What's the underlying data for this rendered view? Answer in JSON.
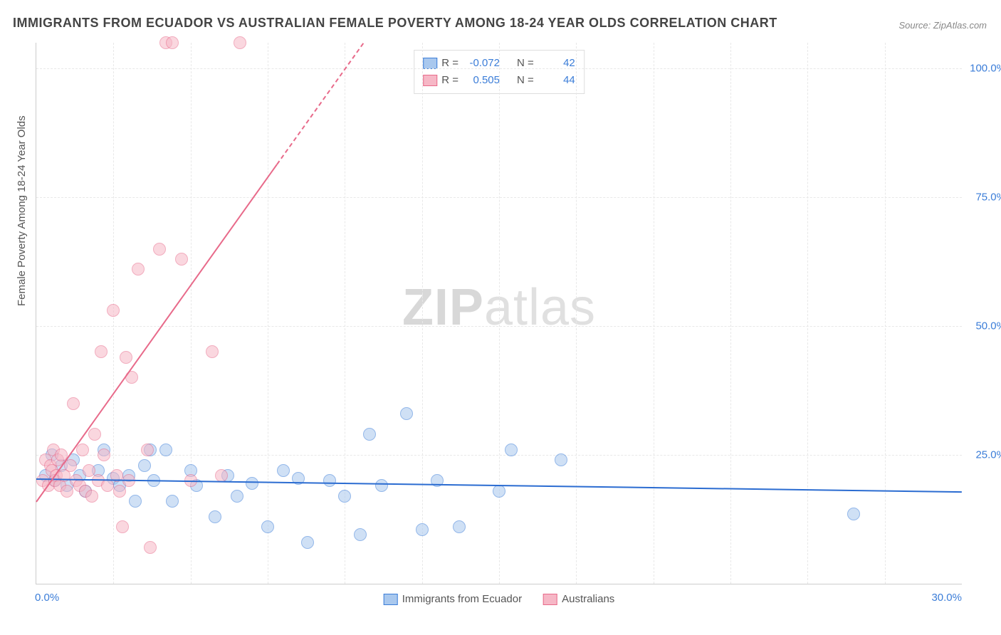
{
  "title": "IMMIGRANTS FROM ECUADOR VS AUSTRALIAN FEMALE POVERTY AMONG 18-24 YEAR OLDS CORRELATION CHART",
  "source": "Source: ZipAtlas.com",
  "watermark_bold": "ZIP",
  "watermark_light": "atlas",
  "chart": {
    "type": "scatter",
    "xlim": [
      0,
      30
    ],
    "ylim": [
      0,
      105
    ],
    "xtick_step": 2.5,
    "ytick_step": 25,
    "xtick_labels": [
      "0.0%",
      "30.0%"
    ],
    "ytick_labels": [
      "25.0%",
      "50.0%",
      "75.0%",
      "100.0%"
    ],
    "ytick_values": [
      25,
      50,
      75,
      100
    ],
    "xtick_label_values": [
      0,
      30
    ],
    "ylabel": "Female Poverty Among 18-24 Year Olds",
    "background_color": "#ffffff",
    "grid_color": "#e8e8e8",
    "point_radius": 8,
    "series": [
      {
        "id": "ecuador",
        "label": "Immigrants from Ecuador",
        "fill": "#a9c8ee",
        "stroke": "#3b7dd8",
        "fill_opacity": 0.55,
        "R": "-0.072",
        "N": "42",
        "trend": {
          "x1": 0,
          "y1": 20.5,
          "x2": 30,
          "y2": 18.0,
          "color": "#2b6cd1",
          "dashed_after_x": null
        },
        "points": [
          [
            0.3,
            21
          ],
          [
            0.5,
            25
          ],
          [
            0.6,
            20
          ],
          [
            0.8,
            23
          ],
          [
            1.0,
            19
          ],
          [
            1.2,
            24
          ],
          [
            1.4,
            21
          ],
          [
            1.6,
            18
          ],
          [
            2.0,
            22
          ],
          [
            2.2,
            26
          ],
          [
            2.5,
            20.5
          ],
          [
            2.7,
            19
          ],
          [
            3.0,
            21
          ],
          [
            3.2,
            16
          ],
          [
            3.5,
            23
          ],
          [
            3.8,
            20
          ],
          [
            4.2,
            26
          ],
          [
            4.4,
            16
          ],
          [
            5.0,
            22
          ],
          [
            5.2,
            19
          ],
          [
            5.8,
            13
          ],
          [
            6.2,
            21
          ],
          [
            6.5,
            17
          ],
          [
            7.0,
            19.5
          ],
          [
            7.5,
            11
          ],
          [
            8.0,
            22
          ],
          [
            8.5,
            20.5
          ],
          [
            8.8,
            8
          ],
          [
            9.5,
            20
          ],
          [
            10.0,
            17
          ],
          [
            10.5,
            9.5
          ],
          [
            10.8,
            29
          ],
          [
            11.2,
            19
          ],
          [
            12.0,
            33
          ],
          [
            12.5,
            10.5
          ],
          [
            13.0,
            20
          ],
          [
            13.7,
            11
          ],
          [
            15.0,
            18
          ],
          [
            15.4,
            26
          ],
          [
            17.0,
            24
          ],
          [
            26.5,
            13.5
          ],
          [
            3.7,
            26
          ]
        ]
      },
      {
        "id": "australians",
        "label": "Australians",
        "fill": "#f6b7c6",
        "stroke": "#e86a8a",
        "fill_opacity": 0.55,
        "R": "0.505",
        "N": "44",
        "trend": {
          "x1": 0,
          "y1": 16,
          "x2": 10.6,
          "y2": 105,
          "color": "#e86a8a",
          "dashed_after_x": 7.8
        },
        "points": [
          [
            0.2,
            20
          ],
          [
            0.3,
            24
          ],
          [
            0.4,
            19
          ],
          [
            0.45,
            23
          ],
          [
            0.5,
            22
          ],
          [
            0.55,
            26
          ],
          [
            0.6,
            20
          ],
          [
            0.65,
            21
          ],
          [
            0.7,
            24
          ],
          [
            0.75,
            19
          ],
          [
            0.8,
            25
          ],
          [
            0.9,
            21
          ],
          [
            1.0,
            18
          ],
          [
            1.1,
            23
          ],
          [
            1.2,
            35
          ],
          [
            1.3,
            20
          ],
          [
            1.4,
            19
          ],
          [
            1.5,
            26
          ],
          [
            1.6,
            18
          ],
          [
            1.7,
            22
          ],
          [
            1.8,
            17
          ],
          [
            1.9,
            29
          ],
          [
            2.0,
            20
          ],
          [
            2.1,
            45
          ],
          [
            2.2,
            25
          ],
          [
            2.3,
            19
          ],
          [
            2.5,
            53
          ],
          [
            2.6,
            21
          ],
          [
            2.7,
            18
          ],
          [
            2.8,
            11
          ],
          [
            2.9,
            44
          ],
          [
            3.0,
            20
          ],
          [
            3.1,
            40
          ],
          [
            3.3,
            61
          ],
          [
            3.6,
            26
          ],
          [
            3.7,
            7
          ],
          [
            4.0,
            65
          ],
          [
            4.2,
            105
          ],
          [
            4.4,
            105
          ],
          [
            4.7,
            63
          ],
          [
            5.0,
            20
          ],
          [
            5.7,
            45
          ],
          [
            6.6,
            105
          ],
          [
            6.0,
            21
          ]
        ]
      }
    ],
    "legend_top": {
      "r_label": "R =",
      "n_label": "N ="
    }
  }
}
